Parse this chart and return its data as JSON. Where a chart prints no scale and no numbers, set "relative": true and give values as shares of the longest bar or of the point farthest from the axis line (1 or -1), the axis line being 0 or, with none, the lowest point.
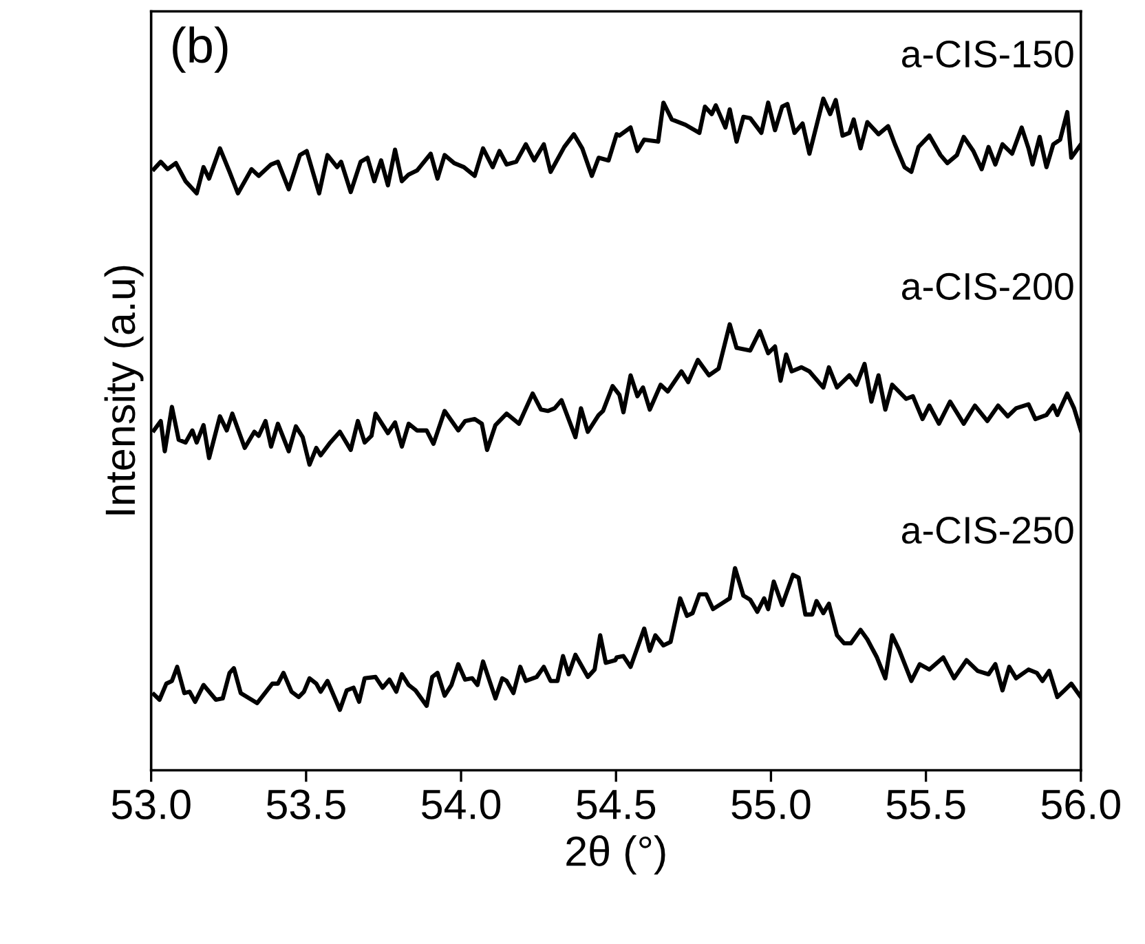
{
  "chart_data": {
    "type": "line",
    "relative": true,
    "xlabel": "2θ (°)",
    "ylabel": "Intensity (a.u)",
    "annotations": [
      "(b)"
    ],
    "xlim": [
      53,
      56
    ],
    "xticks": [
      {
        "value": 53,
        "label": "53.0"
      },
      {
        "value": 53.5,
        "label": "53.5"
      },
      {
        "value": 54,
        "label": "54.0"
      },
      {
        "value": 54.5,
        "label": "54.5"
      },
      {
        "value": 55,
        "label": "55.0"
      },
      {
        "value": 55.5,
        "label": "55.5"
      },
      {
        "value": 56,
        "label": "56.0"
      }
    ],
    "grid": false,
    "legend": false,
    "tick_labels": "x",
    "marker": "none",
    "line_style": "solid",
    "series": [
      {
        "name": "a-CIS-150",
        "color": "#000000",
        "x": [
          53.009,
          53.031,
          53.053,
          53.08,
          53.111,
          53.147,
          53.169,
          53.187,
          53.222,
          53.253,
          53.28,
          53.324,
          53.347,
          53.387,
          53.409,
          53.444,
          53.48,
          53.502,
          53.542,
          53.569,
          53.6,
          53.613,
          53.644,
          53.676,
          53.698,
          53.72,
          53.742,
          53.764,
          53.787,
          53.809,
          53.831,
          53.858,
          53.902,
          53.924,
          53.947,
          53.978,
          54.009,
          54.044,
          54.071,
          54.102,
          54.124,
          54.147,
          54.178,
          54.209,
          54.236,
          54.267,
          54.289,
          54.333,
          54.364,
          54.391,
          54.422,
          54.444,
          54.476,
          54.502,
          54.511,
          54.547,
          54.569,
          54.591,
          54.636,
          54.653,
          54.68,
          54.724,
          54.769,
          54.787,
          54.809,
          54.822,
          54.853,
          54.867,
          54.889,
          54.911,
          54.933,
          54.969,
          54.991,
          55.013,
          55.036,
          55.053,
          55.076,
          55.102,
          55.124,
          55.169,
          55.191,
          55.209,
          55.231,
          55.253,
          55.267,
          55.289,
          55.311,
          55.347,
          55.378,
          55.4,
          55.431,
          55.453,
          55.476,
          55.511,
          55.547,
          55.569,
          55.6,
          55.622,
          55.653,
          55.68,
          55.702,
          55.724,
          55.747,
          55.778,
          55.809,
          55.831,
          55.844,
          55.867,
          55.889,
          55.911,
          55.933,
          55.956,
          55.969,
          56.0
        ],
        "values": [
          0.895,
          0.906,
          0.895,
          0.904,
          0.877,
          0.859,
          0.898,
          0.881,
          0.926,
          0.891,
          0.859,
          0.895,
          0.885,
          0.902,
          0.906,
          0.865,
          0.916,
          0.922,
          0.859,
          0.916,
          0.898,
          0.906,
          0.861,
          0.906,
          0.912,
          0.877,
          0.908,
          0.871,
          0.924,
          0.877,
          0.887,
          0.893,
          0.918,
          0.881,
          0.916,
          0.904,
          0.898,
          0.885,
          0.926,
          0.898,
          0.922,
          0.902,
          0.906,
          0.932,
          0.908,
          0.932,
          0.891,
          0.928,
          0.947,
          0.926,
          0.885,
          0.912,
          0.908,
          0.947,
          0.945,
          0.957,
          0.922,
          0.939,
          0.936,
          0.994,
          0.969,
          0.961,
          0.949,
          0.988,
          0.977,
          0.99,
          0.957,
          0.984,
          0.936,
          0.973,
          0.971,
          0.949,
          0.994,
          0.953,
          0.988,
          0.992,
          0.949,
          0.963,
          0.918,
          1.0,
          0.977,
          0.998,
          0.945,
          0.949,
          0.969,
          0.926,
          0.965,
          0.947,
          0.959,
          0.932,
          0.898,
          0.891,
          0.928,
          0.945,
          0.916,
          0.904,
          0.916,
          0.943,
          0.922,
          0.895,
          0.928,
          0.902,
          0.932,
          0.918,
          0.957,
          0.926,
          0.902,
          0.943,
          0.898,
          0.932,
          0.939,
          0.98,
          0.912,
          0.932
        ]
      },
      {
        "name": "a-CIS-200",
        "color": "#000000",
        "x": [
          53.009,
          53.031,
          53.044,
          53.067,
          53.089,
          53.111,
          53.133,
          53.147,
          53.169,
          53.187,
          53.222,
          53.244,
          53.262,
          53.302,
          53.333,
          53.347,
          53.369,
          53.387,
          53.409,
          53.444,
          53.467,
          53.489,
          53.511,
          53.533,
          53.547,
          53.578,
          53.609,
          53.644,
          53.667,
          53.689,
          53.711,
          53.724,
          53.764,
          53.787,
          53.809,
          53.831,
          53.858,
          53.889,
          53.911,
          53.947,
          53.991,
          54.013,
          54.044,
          54.067,
          54.084,
          54.111,
          54.147,
          54.187,
          54.231,
          54.258,
          54.28,
          54.302,
          54.324,
          54.369,
          54.387,
          54.409,
          54.444,
          54.458,
          54.489,
          54.511,
          54.524,
          54.547,
          54.569,
          54.587,
          54.609,
          54.644,
          54.667,
          54.711,
          54.733,
          54.764,
          54.8,
          54.831,
          54.867,
          54.889,
          54.933,
          54.964,
          54.991,
          55.013,
          55.031,
          55.049,
          55.067,
          55.098,
          55.124,
          55.169,
          55.187,
          55.213,
          55.253,
          55.276,
          55.302,
          55.324,
          55.347,
          55.369,
          55.391,
          55.436,
          55.458,
          55.489,
          55.511,
          55.542,
          55.578,
          55.622,
          55.658,
          55.698,
          55.733,
          55.764,
          55.791,
          55.831,
          55.853,
          55.889,
          55.911,
          55.924,
          55.956,
          55.978,
          56.0
        ],
        "values": [
          0.506,
          0.52,
          0.475,
          0.541,
          0.492,
          0.488,
          0.506,
          0.488,
          0.514,
          0.465,
          0.527,
          0.506,
          0.531,
          0.48,
          0.504,
          0.498,
          0.52,
          0.482,
          0.516,
          0.475,
          0.512,
          0.496,
          0.455,
          0.48,
          0.469,
          0.488,
          0.504,
          0.477,
          0.52,
          0.488,
          0.498,
          0.531,
          0.502,
          0.518,
          0.482,
          0.516,
          0.506,
          0.506,
          0.486,
          0.535,
          0.506,
          0.52,
          0.523,
          0.516,
          0.477,
          0.514,
          0.531,
          0.516,
          0.561,
          0.537,
          0.535,
          0.539,
          0.551,
          0.496,
          0.539,
          0.504,
          0.529,
          0.535,
          0.572,
          0.559,
          0.533,
          0.588,
          0.557,
          0.57,
          0.537,
          0.574,
          0.564,
          0.594,
          0.578,
          0.611,
          0.588,
          0.598,
          0.664,
          0.629,
          0.625,
          0.654,
          0.621,
          0.631,
          0.58,
          0.619,
          0.594,
          0.6,
          0.594,
          0.57,
          0.6,
          0.57,
          0.588,
          0.574,
          0.605,
          0.549,
          0.588,
          0.537,
          0.574,
          0.553,
          0.557,
          0.523,
          0.543,
          0.516,
          0.549,
          0.516,
          0.543,
          0.52,
          0.543,
          0.527,
          0.539,
          0.545,
          0.523,
          0.529,
          0.543,
          0.529,
          0.561,
          0.539,
          0.506
        ]
      },
      {
        "name": "a-CIS-250",
        "color": "#000000",
        "x": [
          53.009,
          53.027,
          53.049,
          53.067,
          53.084,
          53.107,
          53.124,
          53.142,
          53.169,
          53.209,
          53.231,
          53.253,
          53.267,
          53.289,
          53.342,
          53.391,
          53.409,
          53.427,
          53.453,
          53.476,
          53.493,
          53.511,
          53.533,
          53.547,
          53.569,
          53.609,
          53.631,
          53.653,
          53.671,
          53.689,
          53.724,
          53.747,
          53.769,
          53.791,
          53.809,
          53.831,
          53.853,
          53.889,
          53.907,
          53.924,
          53.947,
          53.969,
          53.991,
          54.013,
          54.036,
          54.053,
          54.071,
          54.111,
          54.133,
          54.147,
          54.169,
          54.191,
          54.209,
          54.244,
          54.267,
          54.289,
          54.311,
          54.329,
          54.347,
          54.369,
          54.409,
          54.431,
          54.449,
          54.467,
          54.498,
          54.502,
          54.524,
          54.547,
          54.591,
          54.609,
          54.627,
          54.653,
          54.676,
          54.707,
          54.729,
          54.747,
          54.769,
          54.791,
          54.813,
          54.84,
          54.867,
          54.884,
          54.911,
          54.933,
          54.956,
          54.978,
          54.991,
          55.009,
          55.036,
          55.071,
          55.089,
          55.111,
          55.133,
          55.147,
          55.169,
          55.187,
          55.213,
          55.236,
          55.258,
          55.289,
          55.311,
          55.342,
          55.369,
          55.391,
          55.413,
          55.453,
          55.48,
          55.511,
          55.556,
          55.591,
          55.631,
          55.667,
          55.702,
          55.724,
          55.747,
          55.769,
          55.791,
          55.831,
          55.858,
          55.876,
          55.898,
          55.924,
          55.947,
          55.969,
          56.0
        ],
        "values": [
          0.113,
          0.105,
          0.129,
          0.133,
          0.154,
          0.115,
          0.117,
          0.102,
          0.127,
          0.105,
          0.107,
          0.145,
          0.152,
          0.115,
          0.1,
          0.129,
          0.129,
          0.145,
          0.117,
          0.109,
          0.117,
          0.137,
          0.129,
          0.117,
          0.133,
          0.09,
          0.119,
          0.123,
          0.102,
          0.137,
          0.139,
          0.123,
          0.135,
          0.117,
          0.143,
          0.127,
          0.119,
          0.096,
          0.139,
          0.145,
          0.111,
          0.127,
          0.158,
          0.135,
          0.137,
          0.127,
          0.162,
          0.107,
          0.137,
          0.133,
          0.115,
          0.154,
          0.133,
          0.139,
          0.154,
          0.133,
          0.133,
          0.17,
          0.143,
          0.172,
          0.139,
          0.15,
          0.201,
          0.16,
          0.164,
          0.168,
          0.17,
          0.154,
          0.211,
          0.178,
          0.201,
          0.186,
          0.191,
          0.256,
          0.23,
          0.234,
          0.262,
          0.262,
          0.24,
          0.248,
          0.256,
          0.301,
          0.26,
          0.254,
          0.236,
          0.256,
          0.24,
          0.281,
          0.246,
          0.291,
          0.287,
          0.232,
          0.232,
          0.252,
          0.234,
          0.248,
          0.201,
          0.189,
          0.189,
          0.209,
          0.195,
          0.168,
          0.137,
          0.201,
          0.18,
          0.133,
          0.158,
          0.15,
          0.168,
          0.137,
          0.164,
          0.148,
          0.143,
          0.158,
          0.119,
          0.154,
          0.137,
          0.15,
          0.145,
          0.133,
          0.148,
          0.109,
          0.119,
          0.129,
          0.109
        ]
      }
    ]
  }
}
